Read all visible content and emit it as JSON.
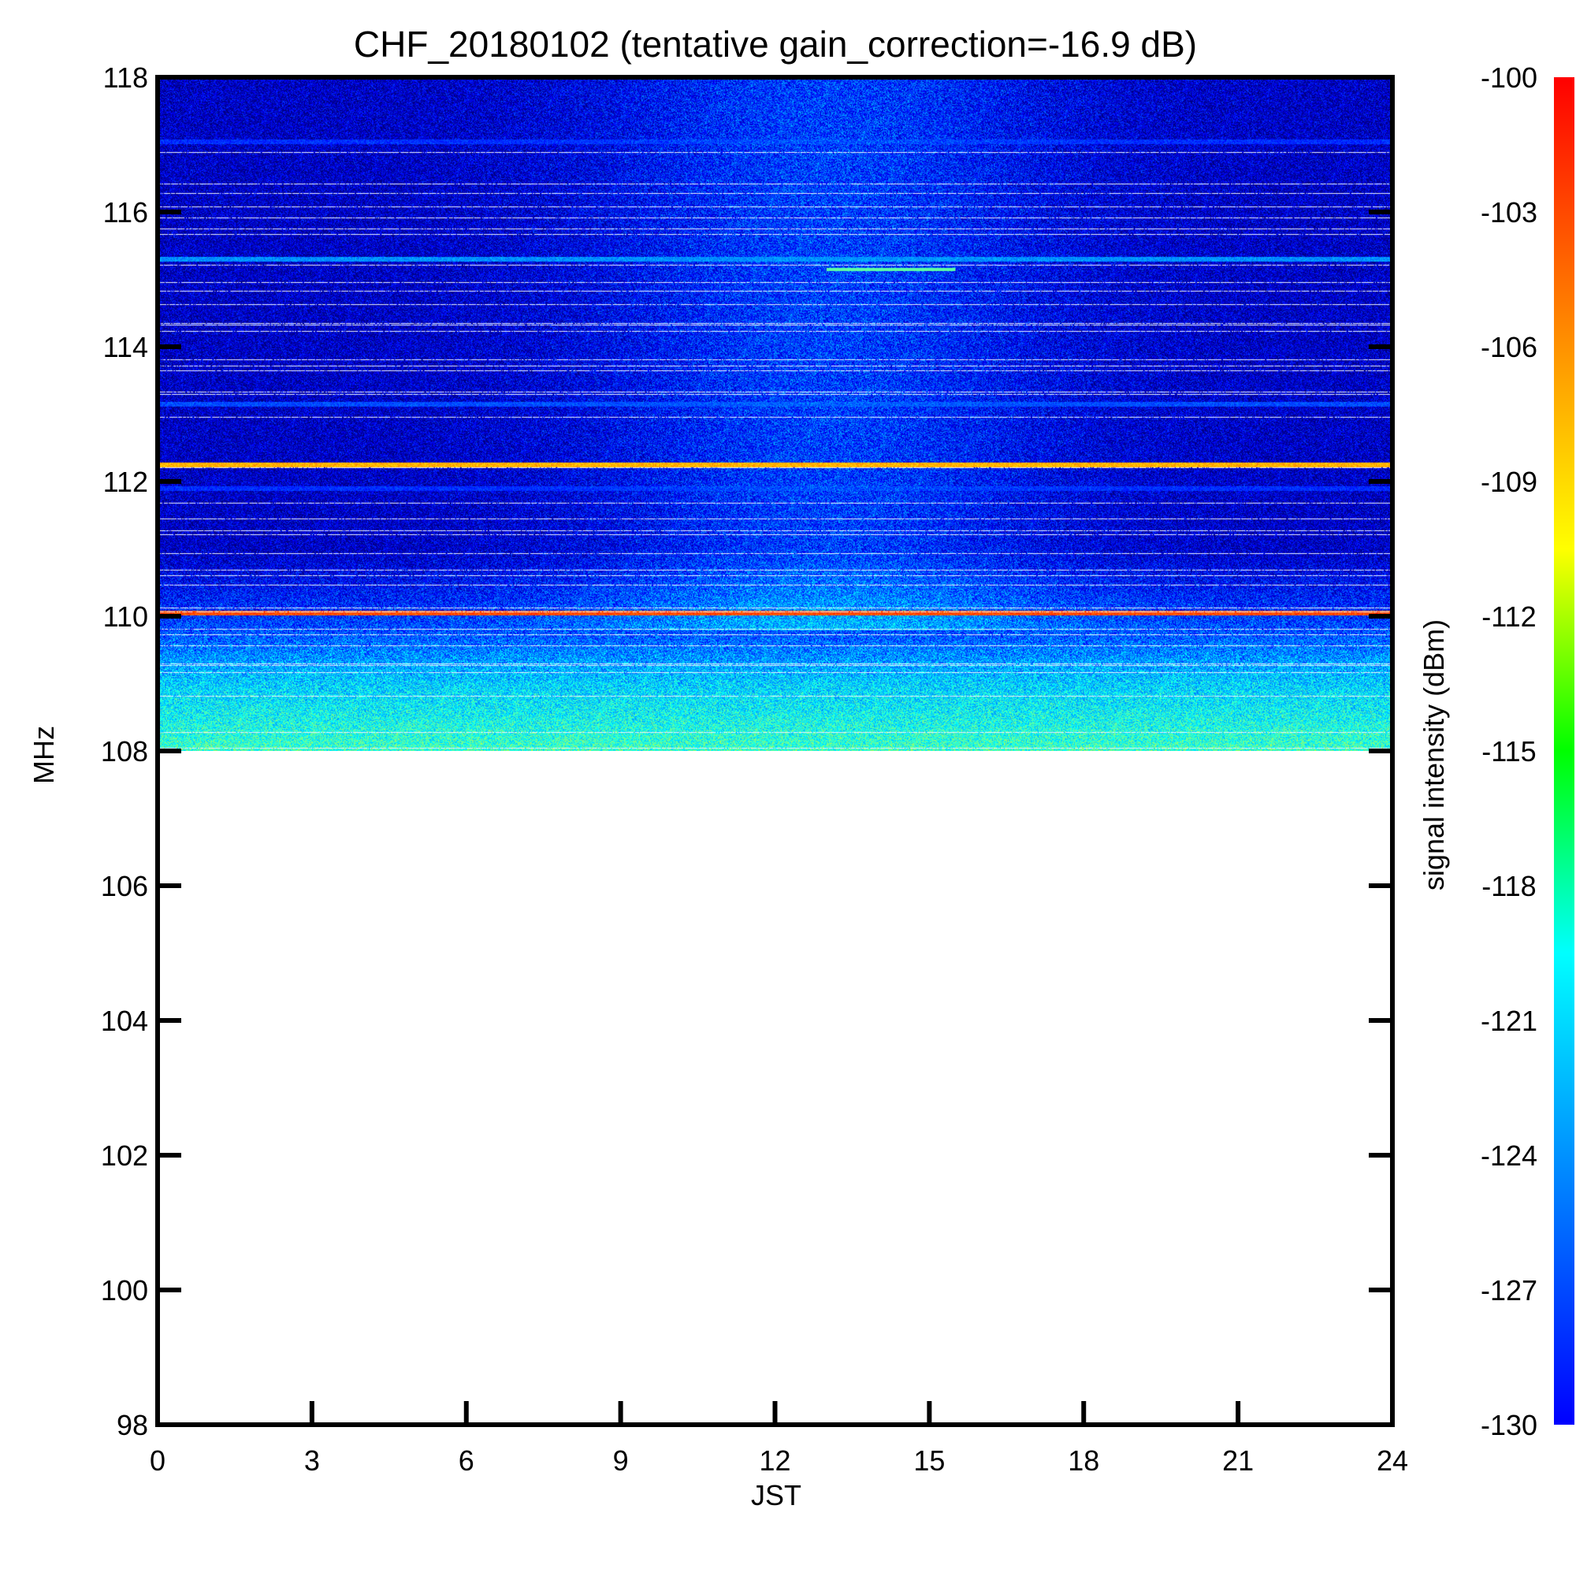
{
  "chart_data": {
    "type": "heatmap",
    "title": "CHF_20180102 (tentative gain_correction=-16.9 dB)",
    "xlabel": "JST",
    "ylabel": "MHz",
    "colorbar_label": "signal intensity (dBm)",
    "xlim": [
      0,
      24
    ],
    "ylim": [
      98,
      118
    ],
    "data_extent_y": [
      108,
      118
    ],
    "color_range": [
      -130,
      -100
    ],
    "colormap": "jet",
    "x_ticks": [
      "0",
      "3",
      "6",
      "9",
      "12",
      "15",
      "18",
      "21",
      "24"
    ],
    "y_ticks": [
      "98",
      "100",
      "102",
      "104",
      "106",
      "108",
      "110",
      "112",
      "114",
      "116",
      "118"
    ],
    "colorbar_ticks": [
      "-130",
      "-127",
      "-124",
      "-121",
      "-118",
      "-115",
      "-112",
      "-109",
      "-106",
      "-103",
      "-100"
    ],
    "grid": false,
    "noise_floor_dbm": [
      {
        "mhz": 108.0,
        "dbm": -117
      },
      {
        "mhz": 109.0,
        "dbm": -120
      },
      {
        "mhz": 109.8,
        "dbm": -124
      },
      {
        "mhz": 111.0,
        "dbm": -128
      },
      {
        "mhz": 118.0,
        "dbm": -128
      }
    ],
    "daytime_enhancement": {
      "center_hour": 13,
      "width_hours": 4.5,
      "delta_db": 3.5
    },
    "persistent_lines": [
      {
        "mhz": 110.05,
        "dbm": -106
      },
      {
        "mhz": 112.25,
        "dbm": -109
      },
      {
        "mhz": 115.3,
        "dbm": -122
      },
      {
        "mhz": 113.15,
        "dbm": -124
      },
      {
        "mhz": 117.05,
        "dbm": -125
      },
      {
        "mhz": 111.9,
        "dbm": -125
      }
    ],
    "transient_lines": [
      {
        "mhz": 115.15,
        "start_hour": 13.0,
        "end_hour": 15.5,
        "dbm": -116
      }
    ]
  }
}
